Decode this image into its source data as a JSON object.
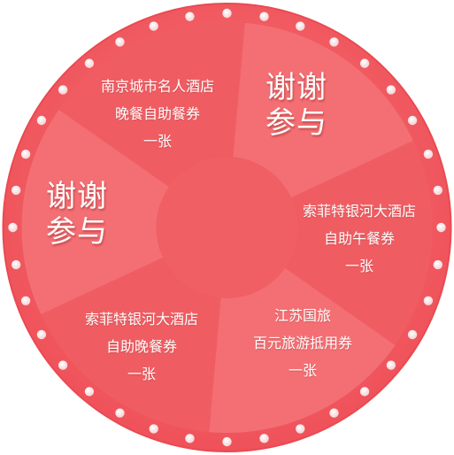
{
  "wheel": {
    "colors": {
      "rim": "#f0525a",
      "segment_light": "#f36f73",
      "segment_dark": "#ef5d62",
      "hub": "#ef5f63",
      "bulb": "#f9e9ea",
      "text": "#ffffff"
    },
    "bulb_count": 36,
    "segments": [
      {
        "lines": [
          "南京城市名人酒店",
          "晚餐自助餐券",
          "一张"
        ],
        "style": "small"
      },
      {
        "lines": [
          "谢谢",
          "参与"
        ],
        "style": "big"
      },
      {
        "lines": [
          "索菲特银河大酒店",
          "自助午餐券",
          "一张"
        ],
        "style": "small"
      },
      {
        "lines": [
          "江苏国旅",
          "百元旅游抵用券",
          "一张"
        ],
        "style": "small"
      },
      {
        "lines": [
          "索菲特银河大酒店",
          "自助晚餐券",
          "一张"
        ],
        "style": "small"
      },
      {
        "lines": [
          "谢谢",
          "参与"
        ],
        "style": "big"
      }
    ]
  }
}
